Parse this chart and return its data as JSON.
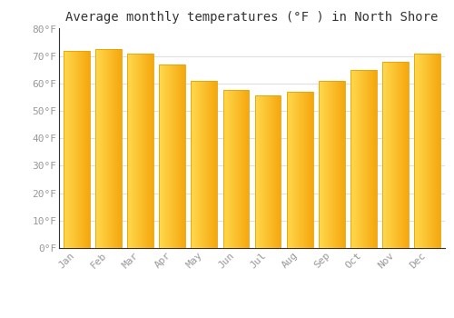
{
  "title": "Average monthly temperatures (°F ) in North Shore",
  "months": [
    "Jan",
    "Feb",
    "Mar",
    "Apr",
    "May",
    "Jun",
    "Jul",
    "Aug",
    "Sep",
    "Oct",
    "Nov",
    "Dec"
  ],
  "values": [
    72,
    72.5,
    71,
    67,
    61,
    57.5,
    55.5,
    57,
    61,
    65,
    68,
    71
  ],
  "bar_color_left": "#FFD84C",
  "bar_color_right": "#F5A800",
  "bar_edge_color": "#E8A000",
  "background_color": "#FFFFFF",
  "plot_bg_color": "#FFFFFF",
  "grid_color": "#E0E0E0",
  "ylim": [
    0,
    80
  ],
  "yticks": [
    0,
    10,
    20,
    30,
    40,
    50,
    60,
    70,
    80
  ],
  "ytick_labels": [
    "0°F",
    "10°F",
    "20°F",
    "30°F",
    "40°F",
    "50°F",
    "60°F",
    "70°F",
    "80°F"
  ],
  "title_fontsize": 10,
  "tick_fontsize": 8,
  "tick_color": "#999999",
  "title_color": "#333333",
  "spine_color": "#333333",
  "bar_width": 0.82
}
